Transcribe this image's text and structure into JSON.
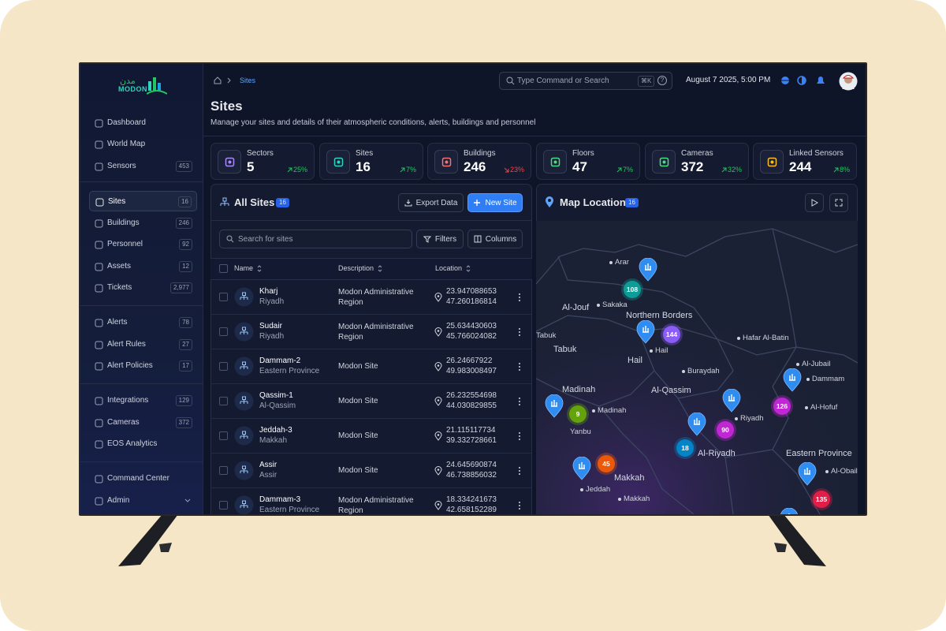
{
  "logo": {
    "arabic": "مدن",
    "latin": "MODON"
  },
  "nav": [
    [
      {
        "label": "Dashboard"
      },
      {
        "label": "World Map"
      },
      {
        "label": "Sensors",
        "count": "453"
      }
    ],
    [
      {
        "label": "Sites",
        "count": "16",
        "active": true
      },
      {
        "label": "Buildings",
        "count": "246"
      },
      {
        "label": "Personnel",
        "count": "92"
      },
      {
        "label": "Assets",
        "count": "12"
      },
      {
        "label": "Tickets",
        "count": "2,977"
      }
    ],
    [
      {
        "label": "Alerts",
        "count": "78"
      },
      {
        "label": "Alert Rules",
        "count": "27"
      },
      {
        "label": "Alert Policies",
        "count": "17"
      }
    ],
    [
      {
        "label": "Integrations",
        "count": "129"
      },
      {
        "label": "Cameras",
        "count": "372"
      },
      {
        "label": "EOS Analytics"
      }
    ],
    [
      {
        "label": "Command Center"
      },
      {
        "label": "Admin",
        "expandable": true
      }
    ]
  ],
  "breadcrumb": {
    "current": "Sites"
  },
  "search": {
    "placeholder": "Type Command or Search",
    "shortcut": "⌘K",
    "help": "?"
  },
  "datetime": "August 7 2025, 5:00 PM",
  "page": {
    "title": "Sites",
    "subtitle": "Manage your sites and details of their atmospheric conditions, alerts, buildings and personnel"
  },
  "stats": [
    {
      "label": "Sectors",
      "value": "5",
      "change": "25%",
      "trend": "up",
      "color": "#a78bfa"
    },
    {
      "label": "Sites",
      "value": "16",
      "change": "7%",
      "trend": "up",
      "color": "#2dd4bf"
    },
    {
      "label": "Buildings",
      "value": "246",
      "change": "23%",
      "trend": "down",
      "color": "#f87171"
    },
    {
      "label": "Floors",
      "value": "47",
      "change": "7%",
      "trend": "up",
      "color": "#4ade80"
    },
    {
      "label": "Cameras",
      "value": "372",
      "change": "32%",
      "trend": "up",
      "color": "#4ade80"
    },
    {
      "label": "Linked Sensors",
      "value": "244",
      "change": "8%",
      "trend": "up",
      "color": "#fbbf24"
    }
  ],
  "sites_panel": {
    "title": "All Sites",
    "count": "16",
    "export": "Export Data",
    "new": "New Site",
    "search_placeholder": "Search for sites",
    "filters": "Filters",
    "columns": "Columns",
    "headers": [
      "Name",
      "Description",
      "Location"
    ],
    "rows": [
      {
        "name": "Kharj",
        "region": "Riyadh",
        "description": "Modon Administrative Region",
        "lat": "23.947088653",
        "lon": "47.260186814"
      },
      {
        "name": "Sudair",
        "region": "Riyadh",
        "description": "Modon Administrative Region",
        "lat": "25.634430603",
        "lon": "45.766024082"
      },
      {
        "name": "Dammam-2",
        "region": "Eastern Province",
        "description": "Modon Site",
        "lat": "26.24667922",
        "lon": "49.983008497"
      },
      {
        "name": "Qassim-1",
        "region": "Al-Qassim",
        "description": "Modon Site",
        "lat": "26.232554698",
        "lon": "44.030829855"
      },
      {
        "name": "Jeddah-3",
        "region": "Makkah",
        "description": "Modon Site",
        "lat": "21.115117734",
        "lon": "39.332728661"
      },
      {
        "name": "Assir",
        "region": "Assir",
        "description": "Modon Site",
        "lat": "24.645690874",
        "lon": "46.738856032"
      },
      {
        "name": "Dammam-3",
        "region": "Eastern Province",
        "description": "Modon Administrative Region",
        "lat": "18.334241673",
        "lon": "42.658152289"
      }
    ]
  },
  "map_panel": {
    "title": "Map Location",
    "count": "16",
    "regions": [
      "Al-Jouf",
      "Northern Borders",
      "Tabuk",
      "Hail",
      "Madinah",
      "Al-Qassim",
      "Al-Riyadh",
      "Eastern Province",
      "Makkah"
    ],
    "cities": [
      "Arar",
      "Sakaka",
      "Hail",
      "Tabuk",
      "Hafar Al-Batin",
      "Al-Jubail",
      "Dammam",
      "Buraydah",
      "Al-Hofuf",
      "Madinah",
      "Riyadh",
      "Yanbu",
      "Al-Obail",
      "Jeddah",
      "Makkah"
    ],
    "clusters": [
      {
        "count": "108",
        "color": "#0d9d97"
      },
      {
        "count": "144",
        "color": "#8b5cf6"
      },
      {
        "count": "126",
        "color": "#c026d3"
      },
      {
        "count": "9",
        "color": "#65a30d"
      },
      {
        "count": "90",
        "color": "#c026d3"
      },
      {
        "count": "18",
        "color": "#0284c7"
      },
      {
        "count": "45",
        "color": "#ea580c"
      },
      {
        "count": "135",
        "color": "#e11d48"
      }
    ]
  }
}
